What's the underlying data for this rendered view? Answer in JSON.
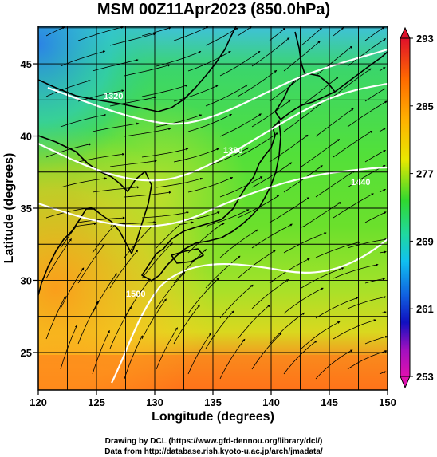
{
  "title": "MSM 00Z11Apr2023 (850.0hPa)",
  "credits": {
    "line1": "Drawing by DCL (https://www.gfd-dennou.org/library/dcl/)",
    "line2": "Data from http://database.rish.kyoto-u.ac.jp/arch/jmadata/"
  },
  "axes": {
    "xlabel": "Longitude (degrees)",
    "ylabel": "Latitude  (degrees)",
    "xlim": [
      120,
      150
    ],
    "ylim": [
      22.4,
      47.6
    ],
    "xticks": [
      "120",
      "125",
      "130",
      "135",
      "140",
      "145",
      "150"
    ],
    "yticks": [
      "25",
      "30",
      "35",
      "40",
      "45"
    ]
  },
  "colorbar": {
    "min": 253,
    "max": 293,
    "labels": [
      "293",
      "285",
      "277",
      "269",
      "261",
      "253"
    ]
  },
  "contour_labels": [
    "1320",
    "1380",
    "1440",
    "1500"
  ],
  "colors": {
    "cold": "#1e90ff",
    "cool": "#2ecc40",
    "warm": "#ffa500",
    "hot": "#ff4500",
    "contour": "#ffffff",
    "coast": "#000000"
  }
}
